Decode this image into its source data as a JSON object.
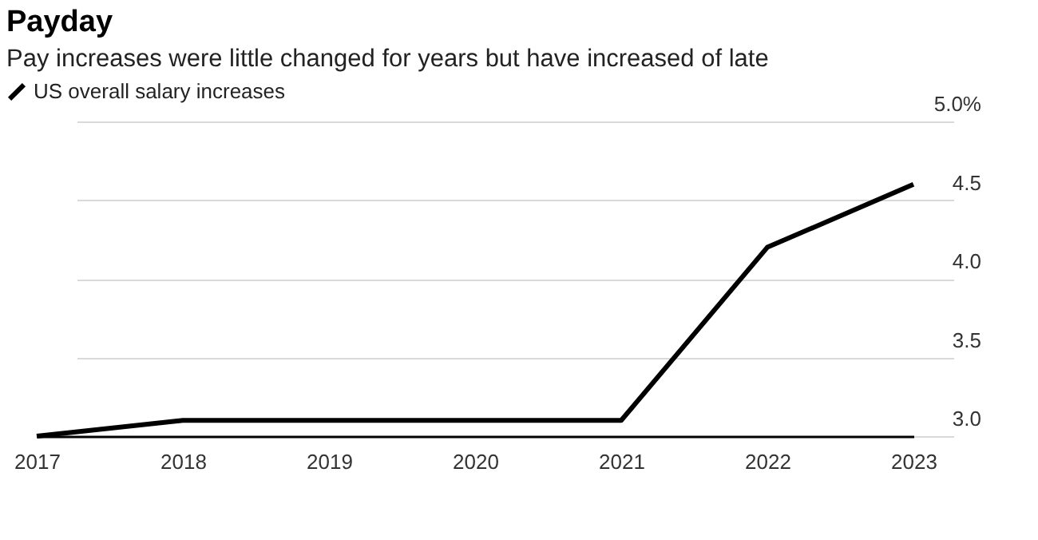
{
  "chart_data": {
    "type": "line",
    "title": "Payday",
    "subtitle": "Pay increases were little changed for years but have increased of late",
    "categories": [
      "2017",
      "2018",
      "2019",
      "2020",
      "2021",
      "2022",
      "2023"
    ],
    "series": [
      {
        "name": "US overall salary increases",
        "color": "#000000",
        "values": [
          3.0,
          3.1,
          3.1,
          3.1,
          3.1,
          4.2,
          4.6
        ]
      }
    ],
    "ylim": [
      3.0,
      5.0
    ],
    "yticks": [
      {
        "value": 3.0,
        "label": "3.0"
      },
      3.5,
      {
        "value": 4.0,
        "label": "4.0"
      },
      4.5,
      {
        "value": 5.0,
        "label": "5.0%"
      }
    ],
    "grid": "y",
    "legend": "top left",
    "marker": "none",
    "line_style": "solid"
  }
}
